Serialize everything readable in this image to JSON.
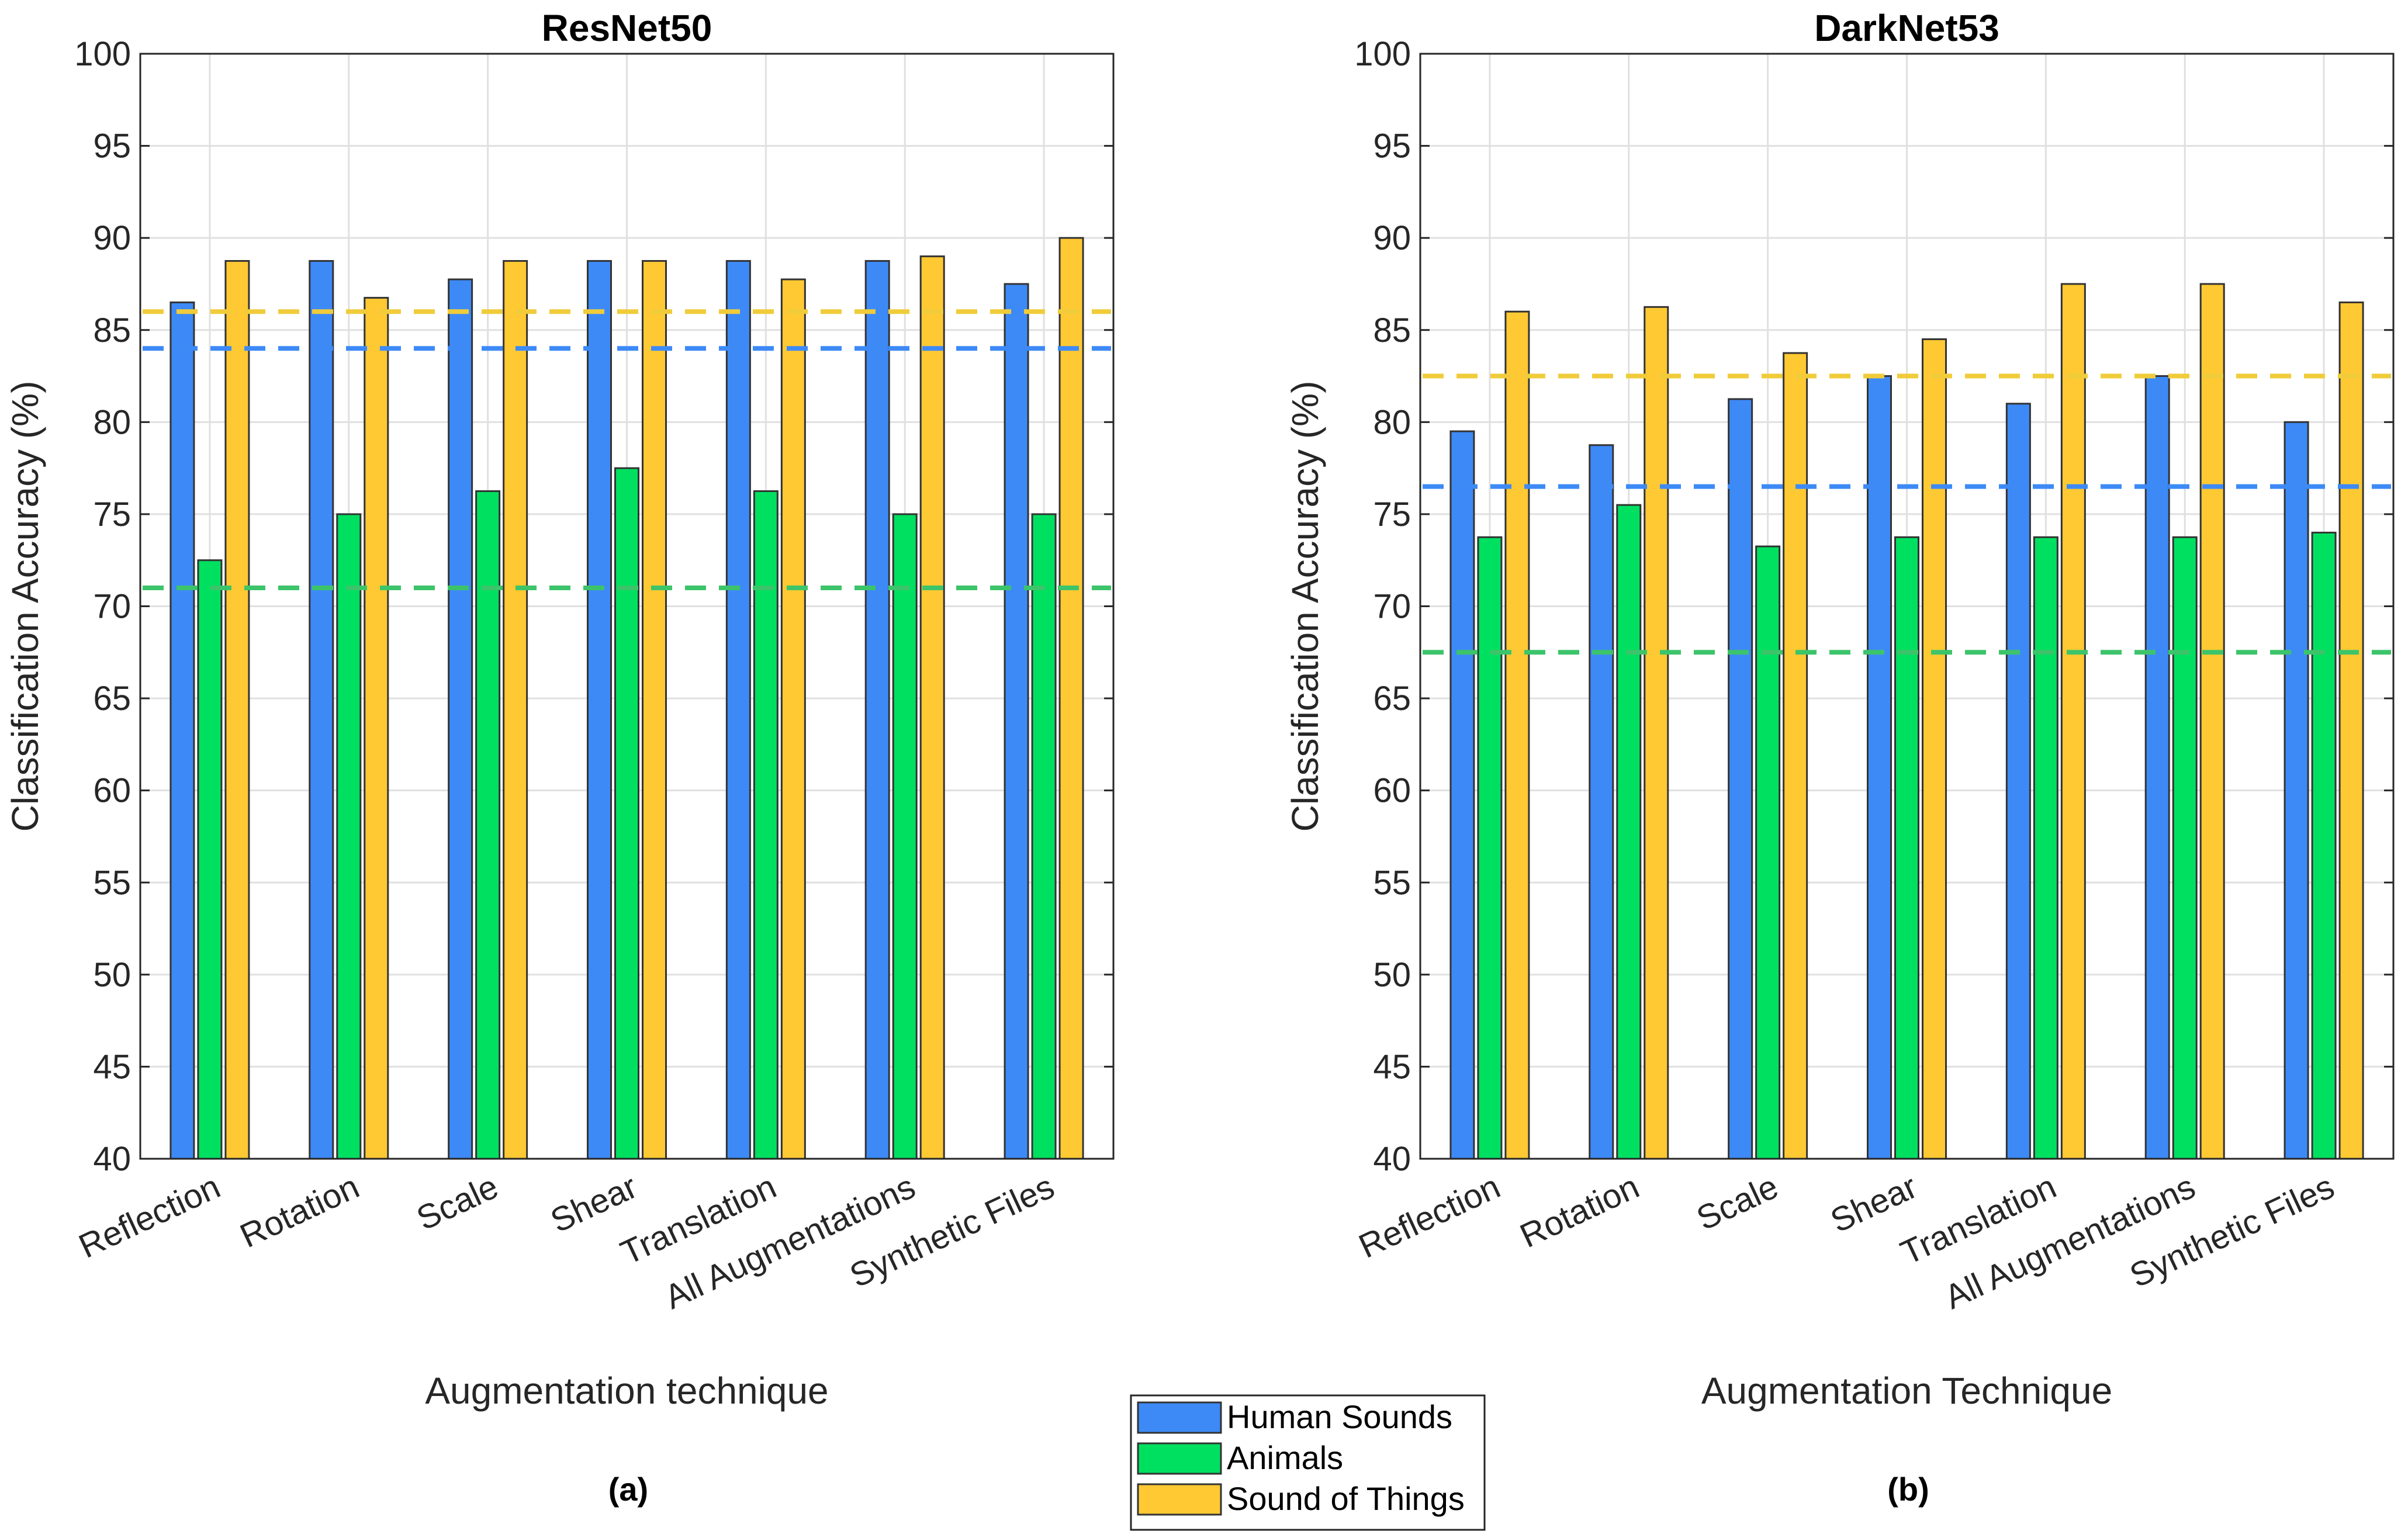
{
  "chart_data": [
    {
      "type": "bar",
      "title": "ResNet50",
      "xlabel": "Augmentation technique",
      "ylabel": "Classification Accuracy (%)",
      "caption": "(a)",
      "ylim": [
        40,
        100
      ],
      "yticks": [
        40,
        45,
        50,
        55,
        60,
        65,
        70,
        75,
        80,
        85,
        90,
        95,
        100
      ],
      "grid": true,
      "categories": [
        "Reflection",
        "Rotation",
        "Scale",
        "Shear",
        "Translation",
        "All Augmentations",
        "Synthetic Files"
      ],
      "series": [
        {
          "name": "Human Sounds",
          "color": "#3d8af7",
          "values": [
            86.5,
            88.75,
            87.75,
            88.75,
            88.75,
            88.75,
            87.5
          ]
        },
        {
          "name": "Animals",
          "color": "#00e060",
          "values": [
            72.5,
            75,
            76.25,
            77.5,
            76.25,
            75,
            75
          ]
        },
        {
          "name": "Sound of Things",
          "color": "#ffc933",
          "values": [
            88.75,
            86.75,
            88.75,
            88.75,
            87.75,
            89,
            90
          ]
        }
      ],
      "reference_lines": [
        {
          "series": "Human Sounds",
          "value": 84,
          "color": "#3d8af7"
        },
        {
          "series": "Animals",
          "value": 71,
          "color": "#3cc46a"
        },
        {
          "series": "Sound of Things",
          "value": 86,
          "color": "#f0cc3a"
        }
      ]
    },
    {
      "type": "bar",
      "title": "DarkNet53",
      "xlabel": "Augmentation Technique",
      "ylabel": "Classification Accuracy (%)",
      "caption": "(b)",
      "ylim": [
        40,
        100
      ],
      "yticks": [
        40,
        45,
        50,
        55,
        60,
        65,
        70,
        75,
        80,
        85,
        90,
        95,
        100
      ],
      "grid": true,
      "categories": [
        "Reflection",
        "Rotation",
        "Scale",
        "Shear",
        "Translation",
        "All Augmentations",
        "Synthetic Files"
      ],
      "series": [
        {
          "name": "Human Sounds",
          "color": "#3d8af7",
          "values": [
            79.5,
            78.75,
            81.25,
            82.5,
            81,
            82.5,
            80
          ]
        },
        {
          "name": "Animals",
          "color": "#00e060",
          "values": [
            73.75,
            75.5,
            73.25,
            73.75,
            73.75,
            73.75,
            74
          ]
        },
        {
          "name": "Sound of Things",
          "color": "#ffc933",
          "values": [
            86,
            86.25,
            83.75,
            84.5,
            87.5,
            87.5,
            86.5
          ]
        }
      ],
      "reference_lines": [
        {
          "series": "Human Sounds",
          "value": 76.5,
          "color": "#3d8af7"
        },
        {
          "series": "Animals",
          "value": 67.5,
          "color": "#3cc46a"
        },
        {
          "series": "Sound of Things",
          "value": 82.5,
          "color": "#f0cc3a"
        }
      ]
    }
  ],
  "legend": {
    "placement": "bottom-center",
    "entries": [
      {
        "label": "Human Sounds",
        "color": "#3d8af7"
      },
      {
        "label": "Animals",
        "color": "#00e060"
      },
      {
        "label": "Sound of Things",
        "color": "#ffc933"
      }
    ]
  }
}
